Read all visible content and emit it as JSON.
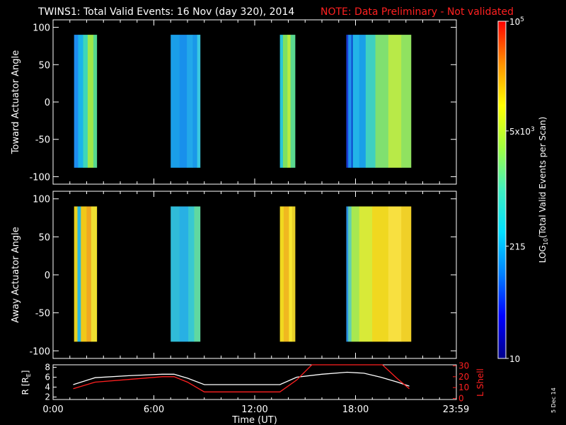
{
  "header": {
    "title": "TWINS1: Total Valid Events: 16 Nov (day 320), 2014",
    "note": "NOTE: Data Preliminary - Not validated"
  },
  "colors": {
    "background": "#000000",
    "axes": "#ffffff",
    "note": "#ff2020",
    "r_line": "#ffffff",
    "l_line": "#ff2020"
  },
  "stamp": "5 Dec 14",
  "chart_data": [
    {
      "type": "heatmap",
      "panel": "toward",
      "ylabel": "Toward Actuator Angle",
      "yticks": [
        "100",
        "50",
        "0",
        "-50",
        "-100"
      ],
      "ylim": [
        -110,
        110
      ],
      "xlim": [
        0,
        24
      ],
      "y_extent": [
        -88,
        90
      ],
      "blocks": [
        {
          "t0": 1.25,
          "t1": 2.6,
          "stripes": [
            [
              "#1e8cf0",
              0.18
            ],
            [
              "#1ab4ea",
              0.22
            ],
            [
              "#3ed6b8",
              0.2
            ],
            [
              "#9ee84a",
              0.25
            ],
            [
              "#55d890",
              0.15
            ]
          ]
        },
        {
          "t0": 7.0,
          "t1": 8.75,
          "stripes": [
            [
              "#1a9ee8",
              0.3
            ],
            [
              "#1890ec",
              0.25
            ],
            [
              "#22a8ea",
              0.2
            ],
            [
              "#1a98e8",
              0.15
            ],
            [
              "#3ac8e0",
              0.1
            ]
          ]
        },
        {
          "t0": 13.5,
          "t1": 14.4,
          "stripes": [
            [
              "#28c4d8",
              0.2
            ],
            [
              "#7ee060",
              0.3
            ],
            [
              "#b8ec40",
              0.2
            ],
            [
              "#5ad890",
              0.3
            ]
          ]
        },
        {
          "t0": 17.45,
          "t1": 21.3,
          "stripes": [
            [
              "#1a3ad0",
              0.03
            ],
            [
              "#1e90ee",
              0.05
            ],
            [
              "#0a40c8",
              0.02
            ],
            [
              "#22b4e8",
              0.1
            ],
            [
              "#1aa0e8",
              0.1
            ],
            [
              "#40d0c0",
              0.15
            ],
            [
              "#80e070",
              0.2
            ],
            [
              "#b8ea48",
              0.2
            ],
            [
              "#90e260",
              0.15
            ]
          ]
        }
      ]
    },
    {
      "type": "heatmap",
      "panel": "away",
      "ylabel": "Away Actuator Angle",
      "yticks": [
        "100",
        "50",
        "0",
        "-50",
        "-100"
      ],
      "ylim": [
        -110,
        110
      ],
      "xlim": [
        0,
        24
      ],
      "y_extent": [
        -88,
        90
      ],
      "blocks": [
        {
          "t0": 1.25,
          "t1": 2.6,
          "stripes": [
            [
              "#e8d020",
              0.15
            ],
            [
              "#2ab8e0",
              0.15
            ],
            [
              "#f0c818",
              0.25
            ],
            [
              "#f0a820",
              0.2
            ],
            [
              "#f0e030",
              0.25
            ]
          ]
        },
        {
          "t0": 7.0,
          "t1": 8.75,
          "stripes": [
            [
              "#30bcd8",
              0.3
            ],
            [
              "#28b0e4",
              0.3
            ],
            [
              "#38c8d0",
              0.2
            ],
            [
              "#60d8a0",
              0.2
            ]
          ]
        },
        {
          "t0": 13.5,
          "t1": 14.4,
          "stripes": [
            [
              "#f0d820",
              0.25
            ],
            [
              "#f0b820",
              0.35
            ],
            [
              "#f8e830",
              0.2
            ],
            [
              "#e8d028",
              0.2
            ]
          ]
        },
        {
          "t0": 17.45,
          "t1": 21.3,
          "stripes": [
            [
              "#2a8ee0",
              0.03
            ],
            [
              "#60d0b0",
              0.05
            ],
            [
              "#a8e850",
              0.12
            ],
            [
              "#d8ea38",
              0.2
            ],
            [
              "#f0d820",
              0.25
            ],
            [
              "#f8e040",
              0.2
            ],
            [
              "#f0d028",
              0.15
            ]
          ]
        }
      ]
    },
    {
      "type": "line",
      "panel": "orbit",
      "xlabel": "Time (UT)",
      "xticks": [
        "0:00",
        "6:00",
        "12:00",
        "18:00",
        "23:59"
      ],
      "xtick_values": [
        0,
        6,
        12,
        18,
        23.98
      ],
      "xlim": [
        0,
        24
      ],
      "left_axis": {
        "label": "R [RE]",
        "label_main": "R [R",
        "label_sub": "E",
        "label_end": "]",
        "ticks": [
          "8",
          "6",
          "4",
          "2"
        ],
        "ylim": [
          1.5,
          8.5
        ]
      },
      "right_axis": {
        "label": "L Shell",
        "ticks": [
          "30",
          "20",
          "10",
          "0"
        ],
        "ylim": [
          -1,
          31
        ]
      },
      "series": [
        {
          "name": "R [RE]",
          "axis": "left",
          "color": "#ffffff",
          "x": [
            1.2,
            2.5,
            4.5,
            6.5,
            7.2,
            8.0,
            9.0,
            10.5,
            12.0,
            13.5,
            14.5,
            16.0,
            17.5,
            18.5,
            19.5,
            20.5,
            21.2
          ],
          "y": [
            4.5,
            5.9,
            6.3,
            6.6,
            6.6,
            5.8,
            4.5,
            4.5,
            4.5,
            4.5,
            6.0,
            6.6,
            7.0,
            6.8,
            6.0,
            5.0,
            4.2
          ]
        },
        {
          "name": "L Shell",
          "axis": "right",
          "color": "#ff2020",
          "x": [
            1.2,
            2.5,
            4.5,
            6.5,
            7.2,
            8.0,
            9.0,
            10.5,
            12.0,
            13.5,
            14.5,
            15.4,
            15.6,
            19.3,
            19.6,
            20.5,
            21.2
          ],
          "y": [
            9,
            15,
            17.5,
            20,
            20,
            15,
            6,
            6,
            6,
            6,
            17,
            31,
            31,
            31,
            31,
            18,
            9
          ]
        }
      ]
    },
    {
      "type": "colorbar",
      "label": "LOG10(Total Valid Events per Scan)",
      "label_main": "LOG",
      "label_sub": "10",
      "label_end": "(Total Valid Events per Scan)",
      "ticks": [
        {
          "value": 10,
          "text": "10"
        },
        {
          "value": 215,
          "text": "215"
        },
        {
          "value": 5000,
          "base": "5x10",
          "exp": "3"
        },
        {
          "value": 100000,
          "base": "10",
          "exp": "5"
        }
      ],
      "range": [
        10,
        100000
      ],
      "scale": "log",
      "colormap": [
        "#00008a",
        "#0000ff",
        "#0080ff",
        "#00e0ff",
        "#40f0c0",
        "#a0ff40",
        "#ffff00",
        "#ff9000",
        "#ff0000"
      ]
    }
  ]
}
